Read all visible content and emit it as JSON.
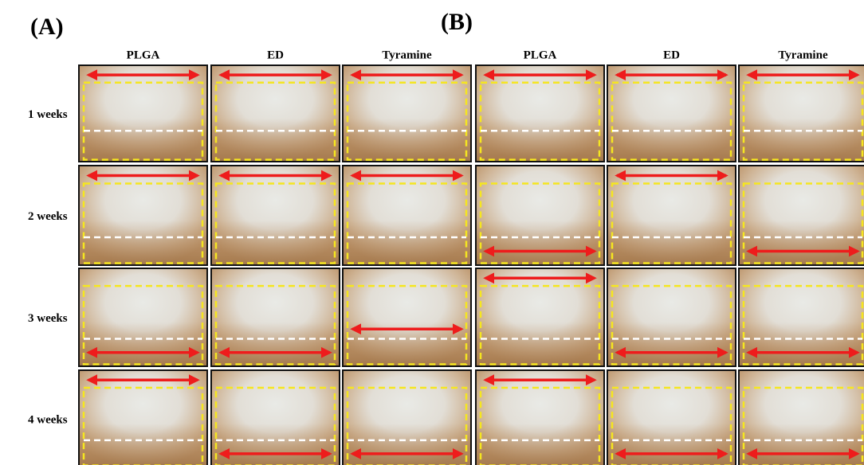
{
  "panels": [
    {
      "label": "(A)",
      "columns": [
        "PLGA",
        "ED",
        "Tyramine"
      ]
    },
    {
      "label": "(B)",
      "columns": [
        "PLGA",
        "ED",
        "Tyramine"
      ]
    }
  ],
  "rows": [
    "1 weeks",
    "2 weeks",
    "3 weeks",
    "4 weeks"
  ]
}
